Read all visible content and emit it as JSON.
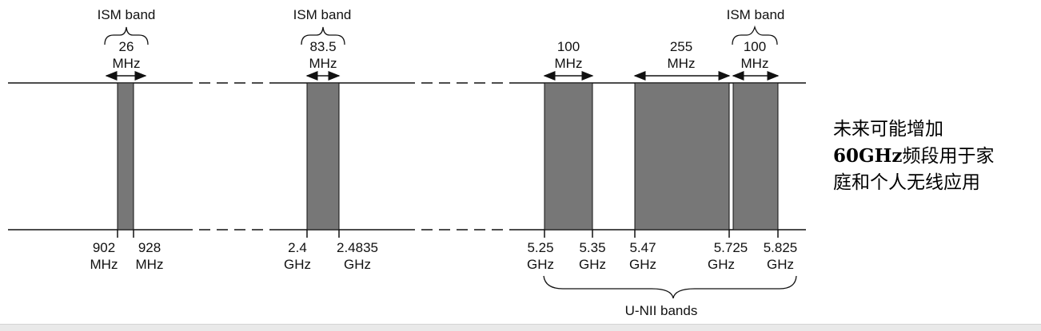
{
  "ism_label": "ISM band",
  "unii_label": "U-NII bands",
  "bands": [
    {
      "start_label": [
        "902",
        "MHz"
      ],
      "end_label": [
        "928",
        "MHz"
      ],
      "width_label": [
        "26",
        "MHz"
      ],
      "ism": true
    },
    {
      "start_label": [
        "2.4",
        "GHz"
      ],
      "end_label": [
        "2.4835",
        "GHz"
      ],
      "width_label": [
        "83.5",
        "MHz"
      ],
      "ism": true
    },
    {
      "start_label": [
        "5.25",
        "GHz"
      ],
      "end_label": [
        "5.35",
        "GHz"
      ],
      "width_label": [
        "100",
        "MHz"
      ],
      "ism": false
    },
    {
      "start_label": [
        "5.47",
        "GHz"
      ],
      "end_label": [
        "5.725",
        "GHz"
      ],
      "width_label": [
        "255",
        "MHz"
      ],
      "ism": false
    },
    {
      "start_label": [
        "5.725",
        "GHz"
      ],
      "end_label": [
        "5.825",
        "GHz"
      ],
      "width_label": [
        "100",
        "MHz"
      ],
      "ism": true
    }
  ],
  "note": {
    "line1": "未来可能增加",
    "line2_bold": "60GHz",
    "line2_rest": "频段用于家",
    "line3": "庭和个人无线应用"
  },
  "colors": {
    "band_fill": "#777777",
    "line": "#111111"
  }
}
